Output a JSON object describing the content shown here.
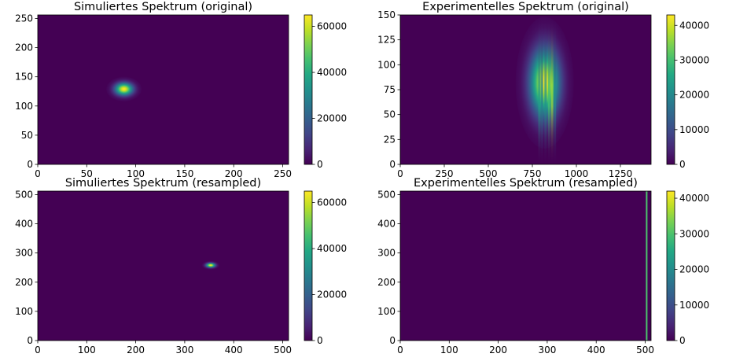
{
  "chart_data": [
    {
      "type": "heatmap",
      "title": "Simuliertes Spektrum (original)",
      "xlim": [
        0,
        256
      ],
      "ylim": [
        0,
        256
      ],
      "xticks": [
        0,
        50,
        100,
        150,
        200,
        250
      ],
      "yticks": [
        0,
        50,
        100,
        150,
        200,
        250
      ],
      "colorbar": {
        "min": 0,
        "max": 65000,
        "ticks": [
          0,
          20000,
          40000,
          60000
        ]
      },
      "blob": {
        "x": 88,
        "y": 129,
        "sx": 6,
        "sy": 7,
        "peak": 65000
      }
    },
    {
      "type": "heatmap",
      "title": "Experimentelles Spektrum (original)",
      "xlim": [
        0,
        1424
      ],
      "ylim": [
        0,
        150
      ],
      "xticks": [
        0,
        250,
        500,
        750,
        1000,
        1250
      ],
      "yticks": [
        0,
        25,
        50,
        75,
        100,
        125,
        150
      ],
      "colorbar": {
        "min": 0,
        "max": 43000,
        "ticks": [
          0,
          10000,
          20000,
          30000,
          40000
        ]
      },
      "blob": {
        "x": 820,
        "y": 82,
        "sx": 55,
        "sy": 22,
        "peak": 43000
      }
    },
    {
      "type": "heatmap",
      "title": "Simuliertes Spektrum (resampled)",
      "xlim": [
        0,
        512
      ],
      "ylim": [
        0,
        512
      ],
      "xticks": [
        0,
        100,
        200,
        300,
        400,
        500
      ],
      "yticks": [
        0,
        100,
        200,
        300,
        400,
        500
      ],
      "colorbar": {
        "min": 0,
        "max": 65000,
        "ticks": [
          0,
          20000,
          40000,
          60000
        ]
      },
      "blob": {
        "x": 353,
        "y": 258,
        "sx": 6,
        "sy": 5,
        "peak": 65000
      }
    },
    {
      "type": "heatmap",
      "title": "Experimentelles Spektrum (resampled)",
      "xlim": [
        0,
        512
      ],
      "ylim": [
        0,
        512
      ],
      "xticks": [
        0,
        100,
        200,
        300,
        400,
        500
      ],
      "yticks": [
        0,
        100,
        200,
        300,
        400,
        500
      ],
      "colorbar": {
        "min": 0,
        "max": 42000,
        "ticks": [
          0,
          10000,
          20000,
          30000,
          40000
        ]
      },
      "line": {
        "x": 503,
        "width": 1.5,
        "peak": 30000
      }
    }
  ]
}
